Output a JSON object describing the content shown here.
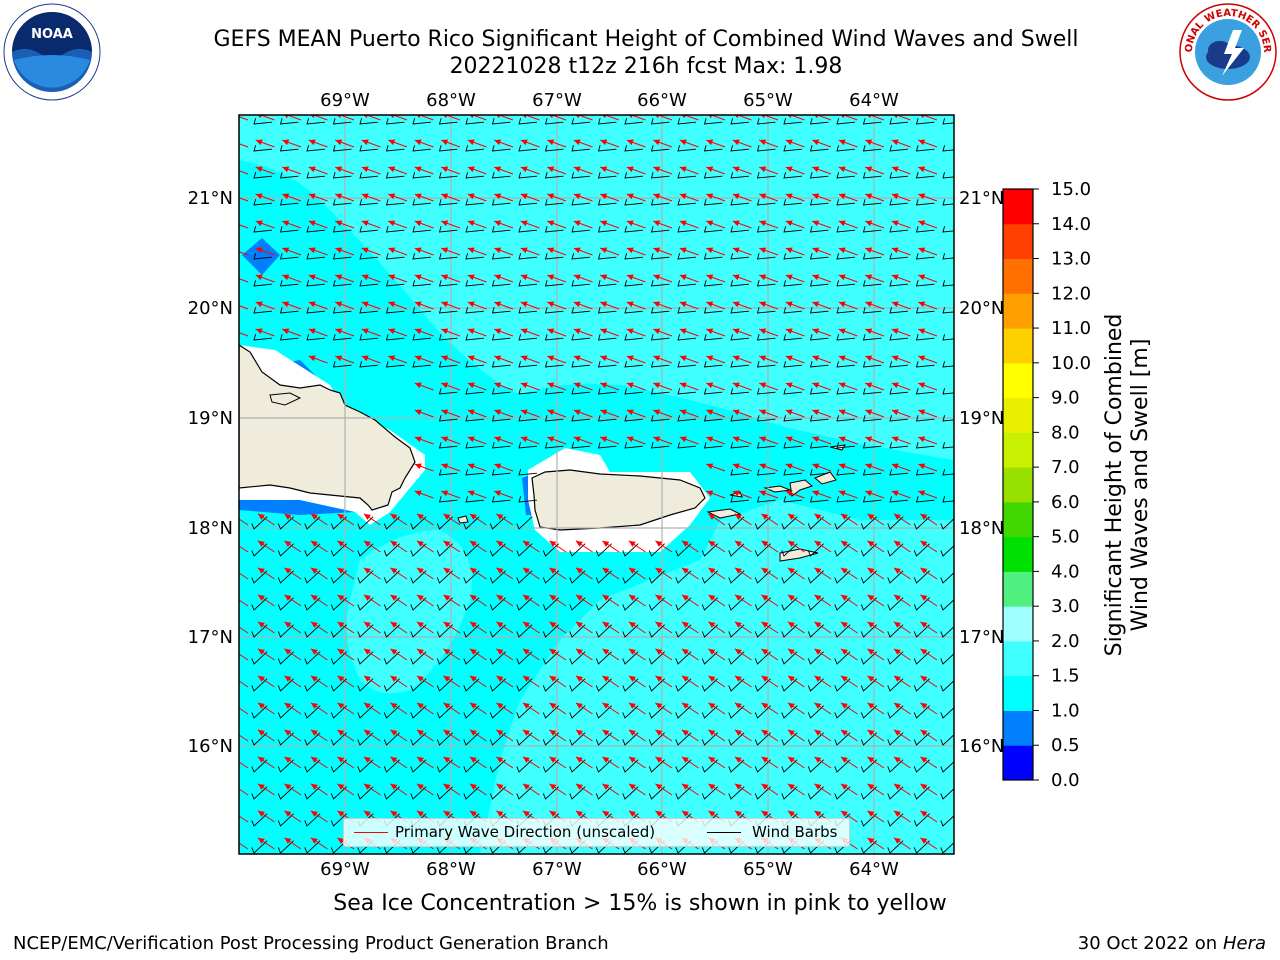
{
  "title_line1": "GEFS MEAN Puerto Rico Significant Height of Combined Wind Waves and Swell",
  "title_line2": "20221028 t12z 216h fcst   Max: 1.98",
  "subtitle": "Sea Ice Concentration > 15% is shown in pink to yellow",
  "footer_left": "NCEP/EMC/Verification Post Processing Product Generation Branch",
  "footer_right_prefix": "30 Oct 2022 on ",
  "footer_right_host": "Hera",
  "noaa_logo": {
    "icon": "noaa-logo",
    "text": "NOAA"
  },
  "nws_logo": {
    "icon": "nws-logo",
    "text": "NATIONAL WEATHER SERVICE"
  },
  "map": {
    "lon_labels": [
      "69°W",
      "68°W",
      "67°W",
      "66°W",
      "65°W",
      "64°W"
    ],
    "lat_labels": [
      "21°N",
      "20°N",
      "19°N",
      "18°N",
      "17°N",
      "16°N"
    ],
    "land_color": "#efecdc",
    "coast_color": "#000000",
    "wave_arrow_color": "#ff0000",
    "barb_color": "#000000"
  },
  "legend": {
    "primary_wave_label": "Primary Wave Direction (unscaled)",
    "wind_barbs_label": "Wind Barbs"
  },
  "colorbar": {
    "label_line1": "Significant Height of Combined",
    "label_line2": "Wind Waves and Swell [m]",
    "ticks": [
      "0.0",
      "0.5",
      "1.0",
      "1.5",
      "2.0",
      "3.0",
      "4.0",
      "5.0",
      "6.0",
      "7.0",
      "8.0",
      "9.0",
      "10.0",
      "11.0",
      "12.0",
      "13.0",
      "14.0",
      "15.0"
    ],
    "colors": [
      "#0000ff",
      "#0080ff",
      "#00ffff",
      "#40ffff",
      "#a0ffff",
      "#50f080",
      "#00e000",
      "#40d800",
      "#98e000",
      "#c8f000",
      "#e8f000",
      "#ffff00",
      "#ffd000",
      "#ffa000",
      "#ff7000",
      "#ff4000",
      "#ff0000"
    ]
  }
}
